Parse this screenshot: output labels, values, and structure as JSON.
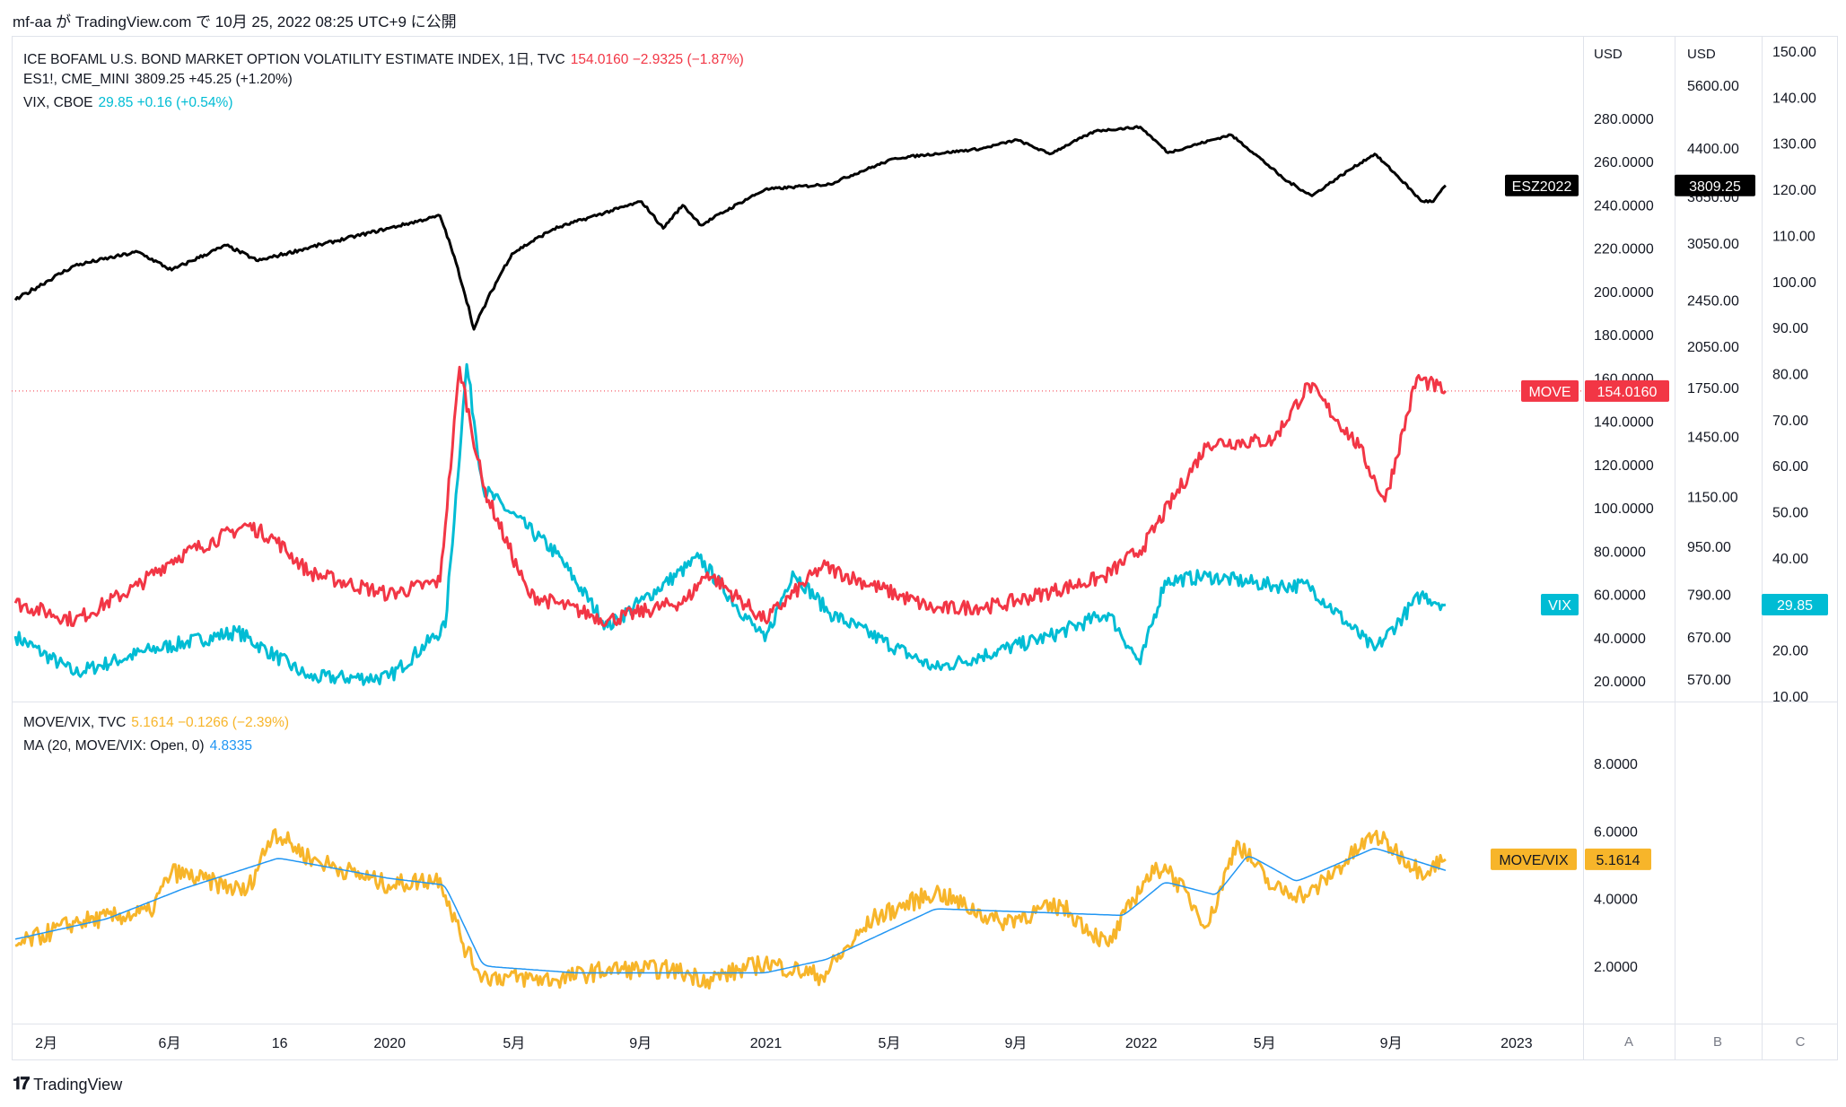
{
  "header": {
    "text": "mf-aa が TradingView.com で 10月 25, 2022 08:25 UTC+9 に公開"
  },
  "footer": {
    "brand": "TradingView"
  },
  "legend_top": [
    {
      "name": "ICE BOFAML U.S. BOND MARKET OPTION VOLATILITY ESTIMATE INDEX, 1日, TVC",
      "value": "154.0160  −2.9325 (−1.87%)",
      "color": "#f23645"
    },
    {
      "name": "ES1!, CME_MINI",
      "value": "3809.25  +45.25 (+1.20%)",
      "color": "#131722"
    },
    {
      "name": "VIX, CBOE",
      "value": "29.85  +0.16 (+0.54%)",
      "color": "#00bcd4"
    }
  ],
  "legend_bottom": [
    {
      "name": "MOVE/VIX, TVC",
      "value": "5.1614  −0.1266 (−2.39%)",
      "color": "#f7b52a"
    },
    {
      "name": "MA (20, MOVE/VIX: Open, 0)",
      "value": "4.8335",
      "color": "#2196f3"
    }
  ],
  "scale_labels": {
    "a": "A",
    "b": "B",
    "c": "C"
  },
  "chart_data": [
    {
      "type": "line",
      "panel": "top",
      "x_ticks": [
        "2月",
        "6月",
        "16",
        "2020",
        "5月",
        "9月",
        "2021",
        "5月",
        "9月",
        "2022",
        "5月",
        "9月",
        "2023"
      ],
      "axes": {
        "move_axis": {
          "unit": "USD",
          "ticks": [
            "280.0000",
            "260.0000",
            "240.0000",
            "220.0000",
            "200.0000",
            "180.0000",
            "160.0000",
            "140.0000",
            "120.0000",
            "100.0000",
            "80.0000",
            "60.0000",
            "40.0000",
            "20.0000"
          ]
        },
        "es_axis": {
          "unit": "USD",
          "ticks": [
            "5600.00",
            "4400.00",
            "3650.00",
            "3050.00",
            "2450.00",
            "2050.00",
            "1750.00",
            "1450.00",
            "1150.00",
            "950.00",
            "790.00",
            "670.00",
            "570.00"
          ],
          "scale": "log"
        },
        "vix_axis": {
          "ticks": [
            "150.00",
            "140.00",
            "130.00",
            "120.00",
            "110.00",
            "100.00",
            "90.00",
            "80.00",
            "70.00",
            "60.00",
            "50.00",
            "40.00",
            "30.00",
            "20.00",
            "10.00"
          ]
        }
      },
      "series": [
        {
          "name": "ES1!",
          "color": "#000000",
          "axis": "es",
          "points": [
            [
              "2019-01-02",
              2450
            ],
            [
              "2019-03-01",
              2800
            ],
            [
              "2019-05-01",
              2950
            ],
            [
              "2019-06-03",
              2750
            ],
            [
              "2019-07-26",
              3025
            ],
            [
              "2019-08-26",
              2850
            ],
            [
              "2019-10-15",
              3000
            ],
            [
              "2019-12-31",
              3230
            ],
            [
              "2020-02-19",
              3390
            ],
            [
              "2020-03-23",
              2190
            ],
            [
              "2020-04-29",
              2930
            ],
            [
              "2020-06-08",
              3220
            ],
            [
              "2020-09-02",
              3580
            ],
            [
              "2020-09-23",
              3230
            ],
            [
              "2020-10-12",
              3530
            ],
            [
              "2020-10-30",
              3270
            ],
            [
              "2020-12-31",
              3750
            ],
            [
              "2021-03-04",
              3830
            ],
            [
              "2021-05-07",
              4230
            ],
            [
              "2021-07-30",
              4390
            ],
            [
              "2021-09-02",
              4540
            ],
            [
              "2021-10-04",
              4300
            ],
            [
              "2021-11-18",
              4700
            ],
            [
              "2021-12-31",
              4770
            ],
            [
              "2022-01-27",
              4320
            ],
            [
              "2022-03-29",
              4630
            ],
            [
              "2022-05-20",
              3900
            ],
            [
              "2022-06-16",
              3660
            ],
            [
              "2022-08-16",
              4300
            ],
            [
              "2022-09-30",
              3590
            ],
            [
              "2022-10-12",
              3580
            ],
            [
              "2022-10-24",
              3809.25
            ]
          ]
        },
        {
          "name": "MOVE",
          "color": "#f23645",
          "axis": "move",
          "points": [
            [
              "2019-01-02",
              56
            ],
            [
              "2019-03-01",
              48
            ],
            [
              "2019-05-01",
              64
            ],
            [
              "2019-06-03",
              76
            ],
            [
              "2019-08-15",
              92
            ],
            [
              "2019-09-10",
              86
            ],
            [
              "2019-10-15",
              70
            ],
            [
              "2019-12-31",
              60
            ],
            [
              "2020-02-19",
              66
            ],
            [
              "2020-03-09",
              165
            ],
            [
              "2020-04-01",
              110
            ],
            [
              "2020-05-15",
              60
            ],
            [
              "2020-07-31",
              48
            ],
            [
              "2020-10-15",
              57
            ],
            [
              "2020-11-05",
              70
            ],
            [
              "2020-12-31",
              48
            ],
            [
              "2021-02-25",
              73
            ],
            [
              "2021-06-15",
              53
            ],
            [
              "2021-08-16",
              55
            ],
            [
              "2021-11-26",
              68
            ],
            [
              "2022-01-03",
              82
            ],
            [
              "2022-03-07",
              130
            ],
            [
              "2022-05-09",
              131
            ],
            [
              "2022-06-13",
              157
            ],
            [
              "2022-08-01",
              128
            ],
            [
              "2022-08-26",
              103
            ],
            [
              "2022-09-26",
              160
            ],
            [
              "2022-10-24",
              154.016
            ]
          ]
        },
        {
          "name": "VIX",
          "color": "#00bcd4",
          "axis": "vix",
          "points": [
            [
              "2019-01-02",
              23
            ],
            [
              "2019-03-01",
              15
            ],
            [
              "2019-05-13",
              20
            ],
            [
              "2019-08-06",
              24
            ],
            [
              "2019-10-15",
              14
            ],
            [
              "2019-12-31",
              14
            ],
            [
              "2020-02-24",
              25
            ],
            [
              "2020-03-16",
              82
            ],
            [
              "2020-04-01",
              55
            ],
            [
              "2020-06-11",
              41
            ],
            [
              "2020-07-31",
              25
            ],
            [
              "2020-09-04",
              31
            ],
            [
              "2020-10-28",
              40
            ],
            [
              "2020-12-31",
              22
            ],
            [
              "2021-01-27",
              37
            ],
            [
              "2021-03-04",
              28
            ],
            [
              "2021-06-15",
              16
            ],
            [
              "2021-10-04",
              23
            ],
            [
              "2021-11-30",
              28
            ],
            [
              "2021-12-31",
              17
            ],
            [
              "2022-01-24",
              35
            ],
            [
              "2022-03-07",
              36
            ],
            [
              "2022-05-09",
              34
            ],
            [
              "2022-06-13",
              34
            ],
            [
              "2022-08-16",
              20
            ],
            [
              "2022-09-30",
              32
            ],
            [
              "2022-10-24",
              29.85
            ]
          ]
        }
      ],
      "last_value_labels": [
        {
          "name": "ESZ2022",
          "value": "3809.25",
          "color": "#000000"
        },
        {
          "name": "MOVE",
          "value": "154.0160",
          "color": "#f23645"
        },
        {
          "name": "VIX",
          "value": "29.85",
          "color": "#00bcd4"
        }
      ]
    },
    {
      "type": "line",
      "panel": "bottom",
      "y_ticks": [
        "8.0000",
        "6.0000",
        "4.0000",
        "2.0000"
      ],
      "ylim": [
        0.3,
        9.8
      ],
      "series": [
        {
          "name": "MOVE/VIX",
          "color": "#f7b52a",
          "points": [
            [
              "2019-01-02",
              2.6
            ],
            [
              "2019-03-01",
              3.3
            ],
            [
              "2019-05-13",
              3.6
            ],
            [
              "2019-06-03",
              4.8
            ],
            [
              "2019-08-15",
              4.2
            ],
            [
              "2019-09-10",
              6.0
            ],
            [
              "2019-10-15",
              5.2
            ],
            [
              "2019-12-31",
              4.4
            ],
            [
              "2020-02-19",
              4.6
            ],
            [
              "2020-03-16",
              2.4
            ],
            [
              "2020-04-01",
              1.7
            ],
            [
              "2020-06-11",
              1.6
            ],
            [
              "2020-07-31",
              1.9
            ],
            [
              "2020-10-01",
              1.9
            ],
            [
              "2020-11-05",
              1.6
            ],
            [
              "2020-12-31",
              2.1
            ],
            [
              "2021-02-25",
              1.7
            ],
            [
              "2021-04-15",
              3.4
            ],
            [
              "2021-06-15",
              4.2
            ],
            [
              "2021-08-16",
              3.3
            ],
            [
              "2021-10-15",
              3.8
            ],
            [
              "2021-11-30",
              2.6
            ],
            [
              "2022-01-03",
              4.5
            ],
            [
              "2022-01-24",
              5.0
            ],
            [
              "2022-03-07",
              3.2
            ],
            [
              "2022-04-04",
              5.7
            ],
            [
              "2022-05-09",
              4.3
            ],
            [
              "2022-06-13",
              4.1
            ],
            [
              "2022-08-16",
              5.9
            ],
            [
              "2022-09-30",
              4.8
            ],
            [
              "2022-10-24",
              5.1614
            ]
          ]
        },
        {
          "name": "MA (20, MOVE/VIX: Open, 0)",
          "color": "#2196f3",
          "points": [
            [
              "2019-01-02",
              2.8
            ],
            [
              "2019-04-01",
              3.4
            ],
            [
              "2019-06-15",
              4.3
            ],
            [
              "2019-09-15",
              5.2
            ],
            [
              "2019-12-31",
              4.6
            ],
            [
              "2020-02-24",
              4.4
            ],
            [
              "2020-04-01",
              2.0
            ],
            [
              "2020-07-01",
              1.8
            ],
            [
              "2020-12-31",
              1.8
            ],
            [
              "2021-03-01",
              2.2
            ],
            [
              "2021-06-15",
              3.7
            ],
            [
              "2021-09-15",
              3.6
            ],
            [
              "2021-12-15",
              3.5
            ],
            [
              "2022-01-24",
              4.5
            ],
            [
              "2022-03-15",
              4.1
            ],
            [
              "2022-04-15",
              5.3
            ],
            [
              "2022-06-01",
              4.5
            ],
            [
              "2022-08-16",
              5.5
            ],
            [
              "2022-10-24",
              4.8335
            ]
          ]
        }
      ],
      "last_value_labels": [
        {
          "name": "MOVE/VIX",
          "value": "5.1614",
          "color": "#f7b52a"
        }
      ]
    }
  ]
}
